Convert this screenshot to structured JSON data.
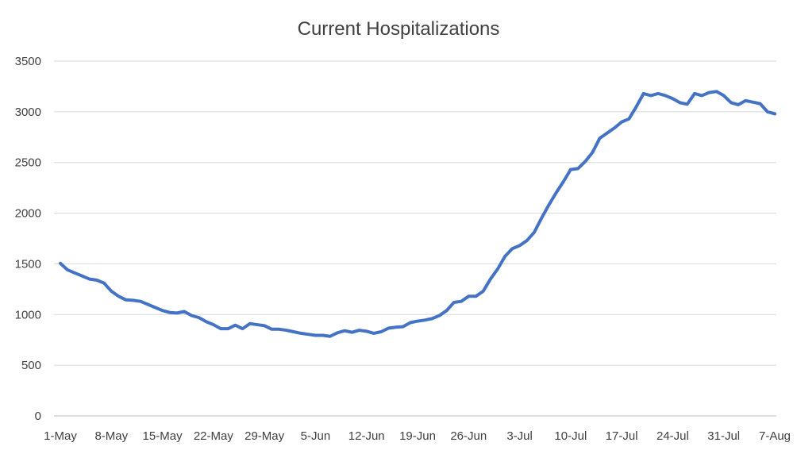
{
  "chart_data": {
    "type": "line",
    "title": "Current Hospitalizations",
    "xlabel": "",
    "ylabel": "",
    "ylim": [
      0,
      3500
    ],
    "yticks": [
      0,
      500,
      1000,
      1500,
      2000,
      2500,
      3000,
      3500
    ],
    "grid": true,
    "legend": "none",
    "x_tick_labels": [
      "1-May",
      "8-May",
      "15-May",
      "22-May",
      "29-May",
      "5-Jun",
      "12-Jun",
      "19-Jun",
      "26-Jun",
      "3-Jul",
      "10-Jul",
      "17-Jul",
      "24-Jul",
      "31-Jul",
      "7-Aug"
    ],
    "series_color": "#4472C4",
    "series": [
      {
        "values": [
          1505,
          1440,
          1410,
          1380,
          1350,
          1340,
          1310,
          1230,
          1180,
          1145,
          1140,
          1130,
          1100,
          1070,
          1040,
          1020,
          1015,
          1030,
          990,
          970,
          930,
          900,
          860,
          860,
          895,
          860,
          910,
          900,
          890,
          855,
          855,
          845,
          830,
          815,
          805,
          795,
          795,
          785,
          820,
          840,
          825,
          845,
          835,
          815,
          830,
          865,
          875,
          880,
          920,
          935,
          945,
          960,
          990,
          1040,
          1120,
          1130,
          1180,
          1180,
          1230,
          1350,
          1450,
          1575,
          1650,
          1680,
          1730,
          1810,
          1950,
          2080,
          2200,
          2310,
          2430,
          2440,
          2510,
          2600,
          2740,
          2790,
          2840,
          2900,
          2930,
          3050,
          3180,
          3160,
          3180,
          3160,
          3130,
          3090,
          3075,
          3180,
          3160,
          3190,
          3200,
          3160,
          3090,
          3070,
          3110,
          3095,
          3080,
          3000,
          2980
        ]
      }
    ]
  }
}
